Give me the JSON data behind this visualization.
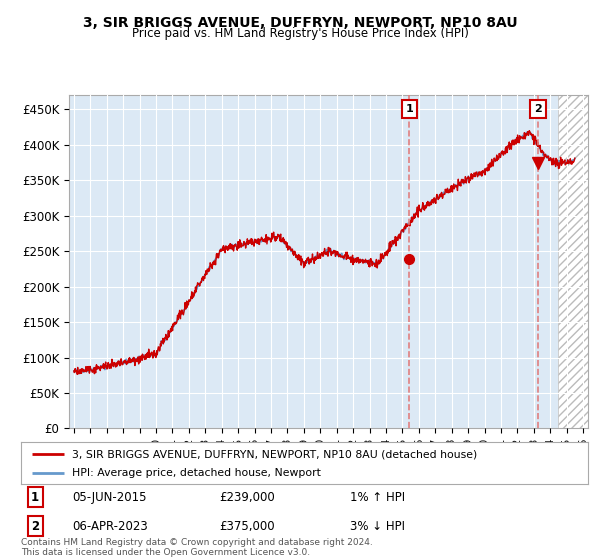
{
  "title": "3, SIR BRIGGS AVENUE, DUFFRYN, NEWPORT, NP10 8AU",
  "subtitle": "Price paid vs. HM Land Registry's House Price Index (HPI)",
  "ylim": [
    0,
    470000
  ],
  "yticks": [
    0,
    50000,
    100000,
    150000,
    200000,
    250000,
    300000,
    350000,
    400000,
    450000
  ],
  "ytick_labels": [
    "£0",
    "£50K",
    "£100K",
    "£150K",
    "£200K",
    "£250K",
    "£300K",
    "£350K",
    "£400K",
    "£450K"
  ],
  "background_color": "#ffffff",
  "plot_bg_color": "#dce9f5",
  "grid_color": "#ffffff",
  "hpi_color": "#6699cc",
  "price_color": "#cc0000",
  "dashed_color": "#e08080",
  "sale1_date_x": 2015.42,
  "sale1_price": 239000,
  "sale2_date_x": 2023.25,
  "sale2_price": 375000,
  "legend_line1": "3, SIR BRIGGS AVENUE, DUFFRYN, NEWPORT, NP10 8AU (detached house)",
  "legend_line2": "HPI: Average price, detached house, Newport",
  "annotation1_date": "05-JUN-2015",
  "annotation1_price": "£239,000",
  "annotation1_hpi": "1% ↑ HPI",
  "annotation2_date": "06-APR-2023",
  "annotation2_price": "£375,000",
  "annotation2_hpi": "3% ↓ HPI",
  "footer": "Contains HM Land Registry data © Crown copyright and database right 2024.\nThis data is licensed under the Open Government Licence v3.0.",
  "xmin": 1995,
  "xmax": 2026
}
